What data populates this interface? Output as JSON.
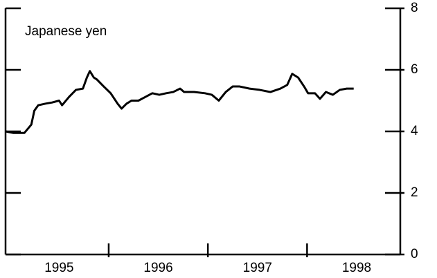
{
  "chart_data": {
    "type": "line",
    "annotation": "Japanese yen",
    "x": [
      1994.96,
      1995.04,
      1995.15,
      1995.22,
      1995.25,
      1995.29,
      1995.36,
      1995.43,
      1995.5,
      1995.53,
      1995.6,
      1995.67,
      1995.74,
      1995.78,
      1995.81,
      1995.85,
      1995.88,
      1995.95,
      1996.02,
      1996.09,
      1996.13,
      1996.18,
      1996.23,
      1996.3,
      1996.37,
      1996.44,
      1996.51,
      1996.58,
      1996.65,
      1996.72,
      1996.76,
      1996.86,
      1996.97,
      1997.04,
      1997.11,
      1997.18,
      1997.25,
      1997.32,
      1997.42,
      1997.52,
      1997.63,
      1997.73,
      1997.8,
      1997.85,
      1997.91,
      1997.97,
      1998.01,
      1998.08,
      1998.13,
      1998.19,
      1998.26,
      1998.33,
      1998.4,
      1998.47
    ],
    "series": [
      {
        "color": "#000000",
        "values": [
          4.0,
          3.95,
          3.95,
          4.22,
          4.67,
          4.85,
          4.9,
          4.94,
          5.0,
          4.85,
          5.12,
          5.35,
          5.39,
          5.75,
          5.96,
          5.75,
          5.69,
          5.46,
          5.24,
          4.9,
          4.74,
          4.9,
          5.0,
          5.0,
          5.12,
          5.24,
          5.19,
          5.24,
          5.28,
          5.39,
          5.28,
          5.28,
          5.24,
          5.19,
          5.0,
          5.28,
          5.46,
          5.46,
          5.39,
          5.35,
          5.28,
          5.39,
          5.51,
          5.87,
          5.75,
          5.46,
          5.24,
          5.24,
          5.06,
          5.28,
          5.19,
          5.35,
          5.39,
          5.39
        ]
      }
    ],
    "xlim": [
      1994.96,
      1998.94
    ],
    "xticks": [
      1996,
      1997,
      1998
    ],
    "xtick_labels": [
      {
        "value": 1995.5,
        "label": "1995"
      },
      {
        "value": 1996.5,
        "label": "1996"
      },
      {
        "value": 1997.5,
        "label": "1997"
      },
      {
        "value": 1998.5,
        "label": "1998"
      }
    ],
    "ylim": [
      0,
      8
    ],
    "yticks": [
      0,
      2,
      4,
      6,
      8
    ]
  }
}
